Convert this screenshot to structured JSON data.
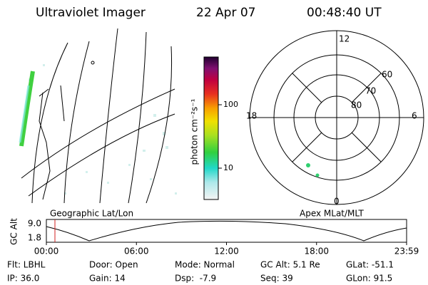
{
  "header": {
    "title": "Ultraviolet Imager",
    "date": "22 Apr 07",
    "time": "00:48:40 UT"
  },
  "colorbar": {
    "label": "photon cm⁻²s⁻¹",
    "ticks": [
      "100",
      "10"
    ]
  },
  "polar": {
    "labels": {
      "top": "12",
      "bottom": "0",
      "left": "18",
      "right": "6"
    },
    "latitudes": [
      "60",
      "70",
      "80"
    ]
  },
  "map_labels": {
    "left": "Geographic Lat/Lon",
    "right": "Apex MLat/MLT"
  },
  "altitude_strip": {
    "label": "GC Alt",
    "ticks": [
      "9.0",
      "1.8"
    ],
    "times": [
      "00:00",
      "06:00",
      "12:00",
      "18:00",
      "23:59"
    ]
  },
  "info": {
    "rows": [
      [
        "Flt: LBHL",
        "Door: Open",
        "Mode: Normal",
        "GC Alt: 5.1 Re",
        "GLat: -51.1"
      ],
      [
        "IP: 36.0",
        "Gain: 14",
        "Dsp:  -7.9",
        "Seq: 39",
        "GLon: 91.5"
      ]
    ]
  }
}
